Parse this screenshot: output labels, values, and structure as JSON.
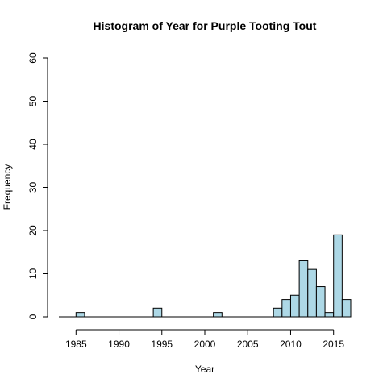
{
  "chart_data": {
    "type": "bar",
    "title": "Histogram of Year for Purple Tooting Tout",
    "xlabel": "Year",
    "ylabel": "Frequency",
    "bin_width": 1,
    "bins": [
      {
        "start": 1985,
        "end": 1986,
        "value": 1
      },
      {
        "start": 1994,
        "end": 1995,
        "value": 2
      },
      {
        "start": 2001,
        "end": 2002,
        "value": 1
      },
      {
        "start": 2008,
        "end": 2009,
        "value": 2
      },
      {
        "start": 2009,
        "end": 2010,
        "value": 4
      },
      {
        "start": 2010,
        "end": 2011,
        "value": 5
      },
      {
        "start": 2011,
        "end": 2012,
        "value": 13
      },
      {
        "start": 2012,
        "end": 2013,
        "value": 11
      },
      {
        "start": 2013,
        "end": 2014,
        "value": 7
      },
      {
        "start": 2014,
        "end": 2015,
        "value": 1
      },
      {
        "start": 2015,
        "end": 2016,
        "value": 19
      },
      {
        "start": 2016,
        "end": 2017,
        "value": 4
      }
    ],
    "xlim": [
      1983,
      2017
    ],
    "ylim": [
      0,
      60
    ],
    "x_ticks": [
      1985,
      1990,
      1995,
      2000,
      2005,
      2010,
      2015
    ],
    "y_ticks": [
      0,
      10,
      20,
      30,
      40,
      50,
      60
    ],
    "bar_color": "#add8e6",
    "grid": false,
    "legend": "none"
  }
}
